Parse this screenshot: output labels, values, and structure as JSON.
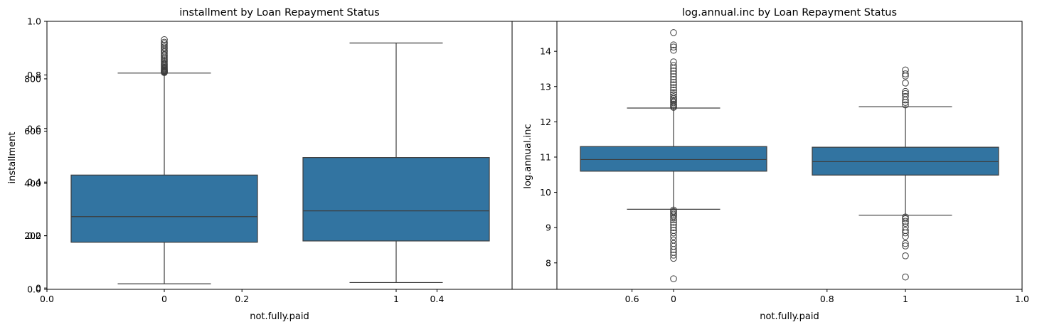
{
  "figure": {
    "background": "#ffffff",
    "box_color": "#3274a1",
    "line_color": "#3d3d3d",
    "overlay_axis_ticks": [
      "0.0",
      "0.2",
      "0.4",
      "0.6",
      "0.8",
      "1.0"
    ]
  },
  "chart_data": [
    {
      "type": "box",
      "title": "installment by Loan Repayment Status",
      "xlabel": "not.fully.paid",
      "ylabel": "installment",
      "categories": [
        "0",
        "1"
      ],
      "ylim": [
        -5,
        1020
      ],
      "yticks": [
        0,
        200,
        400,
        600,
        800
      ],
      "grid": false,
      "boxes": [
        {
          "category": "0",
          "whisker_low": 16,
          "q1": 175,
          "median": 273,
          "q3": 432,
          "whisker_high": 822,
          "outliers_high": [
            824,
            826,
            828,
            830,
            832,
            835,
            838,
            841,
            844,
            848,
            852,
            856,
            861,
            866,
            871,
            876,
            881,
            887,
            892,
            898,
            904,
            910,
            916,
            922,
            928,
            934,
            940,
            950
          ]
        },
        {
          "category": "1",
          "whisker_low": 21,
          "q1": 180,
          "median": 295,
          "q3": 499,
          "whisker_high": 937,
          "outliers_high": []
        }
      ]
    },
    {
      "type": "box",
      "title": "log.annual.inc by Loan Repayment Status",
      "xlabel": "not.fully.paid",
      "ylabel": "log.annual.inc",
      "categories": [
        "0",
        "1"
      ],
      "ylim": [
        7.25,
        14.85
      ],
      "yticks": [
        8,
        9,
        10,
        11,
        12,
        13,
        14
      ],
      "grid": false,
      "boxes": [
        {
          "category": "0",
          "whisker_low": 9.52,
          "q1": 10.6,
          "median": 10.93,
          "q3": 11.3,
          "whisker_high": 12.39,
          "outliers_low": [
            9.5,
            9.46,
            9.42,
            9.38,
            9.33,
            9.28,
            9.22,
            9.15,
            9.08,
            9.0,
            8.92,
            8.85,
            8.75,
            8.65,
            8.55,
            8.47,
            8.38,
            8.3,
            8.22,
            8.13,
            7.55
          ],
          "outliers_high": [
            12.41,
            12.44,
            12.47,
            12.5,
            12.54,
            12.58,
            12.62,
            12.66,
            12.71,
            12.77,
            12.83,
            12.9,
            12.97,
            13.05,
            13.12,
            13.2,
            13.28,
            13.36,
            13.44,
            13.52,
            13.6,
            13.7,
            14.03,
            14.12,
            14.18,
            14.53
          ]
        },
        {
          "category": "1",
          "whisker_low": 9.35,
          "q1": 10.49,
          "median": 10.87,
          "q3": 11.28,
          "whisker_high": 12.43,
          "outliers_low": [
            9.3,
            9.25,
            9.18,
            9.12,
            9.02,
            8.92,
            8.85,
            8.75,
            8.55,
            8.48,
            8.2,
            7.6
          ],
          "outliers_high": [
            12.48,
            12.55,
            12.62,
            12.72,
            12.8,
            12.86,
            13.1,
            13.3,
            13.36,
            13.47
          ]
        }
      ]
    }
  ]
}
